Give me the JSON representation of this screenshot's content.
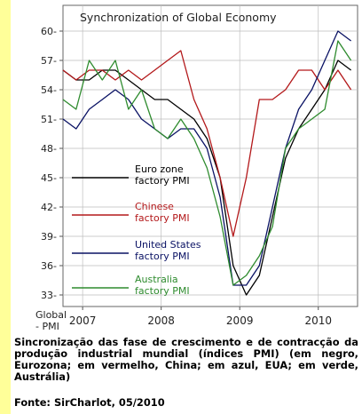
{
  "chart_data": {
    "type": "line",
    "title": "Synchronization of Global Economy",
    "y_axis_label": "Global - PMI",
    "ylim": [
      32,
      62
    ],
    "y_ticks": [
      33,
      36,
      39,
      42,
      45,
      48,
      51,
      54,
      57,
      60
    ],
    "x_ticks": [
      "2007",
      "2008",
      "2009",
      "2010"
    ],
    "x_tick_positions": [
      2007.0,
      2008.0,
      2009.0,
      2010.0
    ],
    "xlim": [
      2006.75,
      2010.5
    ],
    "grid": true,
    "legend_placement": "left-center, inside plot",
    "series": [
      {
        "name": "Euro zone factory PMI",
        "legend_lines": [
          "Euro zone",
          "factory PMI"
        ],
        "color": "#000000",
        "x": [
          2006.75,
          2006.9167,
          2007.0833,
          2007.25,
          2007.4167,
          2007.5833,
          2007.75,
          2007.9167,
          2008.0833,
          2008.25,
          2008.4167,
          2008.5833,
          2008.75,
          2008.9167,
          2009.0833,
          2009.25,
          2009.4167,
          2009.5833,
          2009.75,
          2009.9167,
          2010.0833,
          2010.25,
          2010.4167
        ],
        "values": [
          56,
          55,
          55,
          56,
          56,
          55,
          54,
          53,
          53,
          52,
          51,
          49,
          45,
          36,
          33,
          35,
          41,
          47,
          50,
          52,
          54,
          57,
          56
        ]
      },
      {
        "name": "Chinese factory PMI",
        "legend_lines": [
          "Chinese",
          "factory PMI"
        ],
        "color": "#b3181a",
        "x": [
          2006.75,
          2006.9167,
          2007.0833,
          2007.25,
          2007.4167,
          2007.5833,
          2007.75,
          2007.9167,
          2008.0833,
          2008.25,
          2008.4167,
          2008.5833,
          2008.75,
          2008.9167,
          2009.0833,
          2009.25,
          2009.4167,
          2009.5833,
          2009.75,
          2009.9167,
          2010.0833,
          2010.25,
          2010.4167
        ],
        "values": [
          56,
          55,
          56,
          56,
          55,
          56,
          55,
          56,
          57,
          58,
          53,
          50,
          45,
          39,
          45,
          53,
          53,
          54,
          56,
          56,
          54,
          56,
          54
        ]
      },
      {
        "name": "United States factory PMI",
        "legend_lines": [
          "United States",
          "factory PMI"
        ],
        "color": "#0a1264",
        "x": [
          2006.75,
          2006.9167,
          2007.0833,
          2007.25,
          2007.4167,
          2007.5833,
          2007.75,
          2007.9167,
          2008.0833,
          2008.25,
          2008.4167,
          2008.5833,
          2008.75,
          2008.9167,
          2009.0833,
          2009.25,
          2009.4167,
          2009.5833,
          2009.75,
          2009.9167,
          2010.0833,
          2010.25,
          2010.4167
        ],
        "values": [
          51,
          50,
          52,
          53,
          54,
          53,
          51,
          50,
          49,
          50,
          50,
          48,
          43,
          34,
          34,
          36,
          42,
          48,
          52,
          54,
          57,
          60,
          59
        ]
      },
      {
        "name": "Australia factory PMI",
        "legend_lines": [
          "Australia",
          "factory PMI"
        ],
        "color": "#2e8b2e",
        "x": [
          2006.75,
          2006.9167,
          2007.0833,
          2007.25,
          2007.4167,
          2007.5833,
          2007.75,
          2007.9167,
          2008.0833,
          2008.25,
          2008.4167,
          2008.5833,
          2008.75,
          2008.9167,
          2009.0833,
          2009.25,
          2009.4167,
          2009.5833,
          2009.75,
          2009.9167,
          2010.0833,
          2010.25,
          2010.4167
        ],
        "values": [
          53,
          52,
          57,
          55,
          57,
          52,
          54,
          50,
          49,
          51,
          49,
          46,
          41,
          34,
          35,
          37,
          40,
          48,
          50,
          51,
          52,
          59,
          57
        ]
      }
    ]
  },
  "caption": {
    "text": "Sincronização das fase de crescimento e de contracção da produção industrial mundial (índices PMI) (em negro, Eurozona; em vermelho, China; em azul, EUA; em verde, Austrália)",
    "source": "Fonte: SirCharlot, 05/2010"
  },
  "colors": {
    "side_band": "#ffff99",
    "plot_border": "#666666",
    "grid": "#bdbdbd"
  }
}
